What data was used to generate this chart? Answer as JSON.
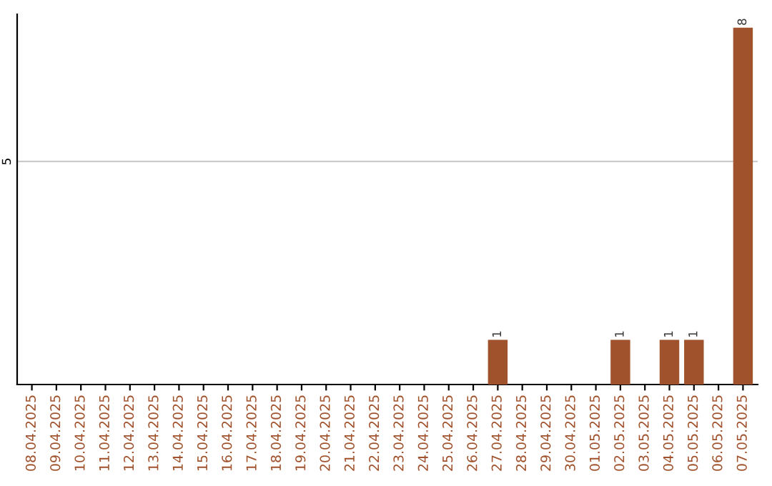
{
  "chart_data": {
    "type": "bar",
    "categories": [
      "08.04.2025",
      "09.04.2025",
      "10.04.2025",
      "11.04.2025",
      "12.04.2025",
      "13.04.2025",
      "14.04.2025",
      "15.04.2025",
      "16.04.2025",
      "17.04.2025",
      "18.04.2025",
      "19.04.2025",
      "20.04.2025",
      "21.04.2025",
      "22.04.2025",
      "23.04.2025",
      "24.04.2025",
      "25.04.2025",
      "26.04.2025",
      "27.04.2025",
      "28.04.2025",
      "29.04.2025",
      "30.04.2025",
      "01.05.2025",
      "02.05.2025",
      "03.05.2025",
      "04.05.2025",
      "05.05.2025",
      "06.05.2025",
      "07.05.2025"
    ],
    "values": [
      null,
      null,
      null,
      null,
      null,
      null,
      null,
      null,
      null,
      null,
      null,
      null,
      null,
      null,
      null,
      null,
      null,
      null,
      null,
      1,
      null,
      null,
      null,
      null,
      1,
      null,
      1,
      1,
      null,
      8
    ],
    "data_labels": true,
    "color": "#a0522d",
    "ylim": [
      0,
      8.3
    ],
    "yticks": [
      5
    ],
    "grid": "y",
    "legend": false
  }
}
